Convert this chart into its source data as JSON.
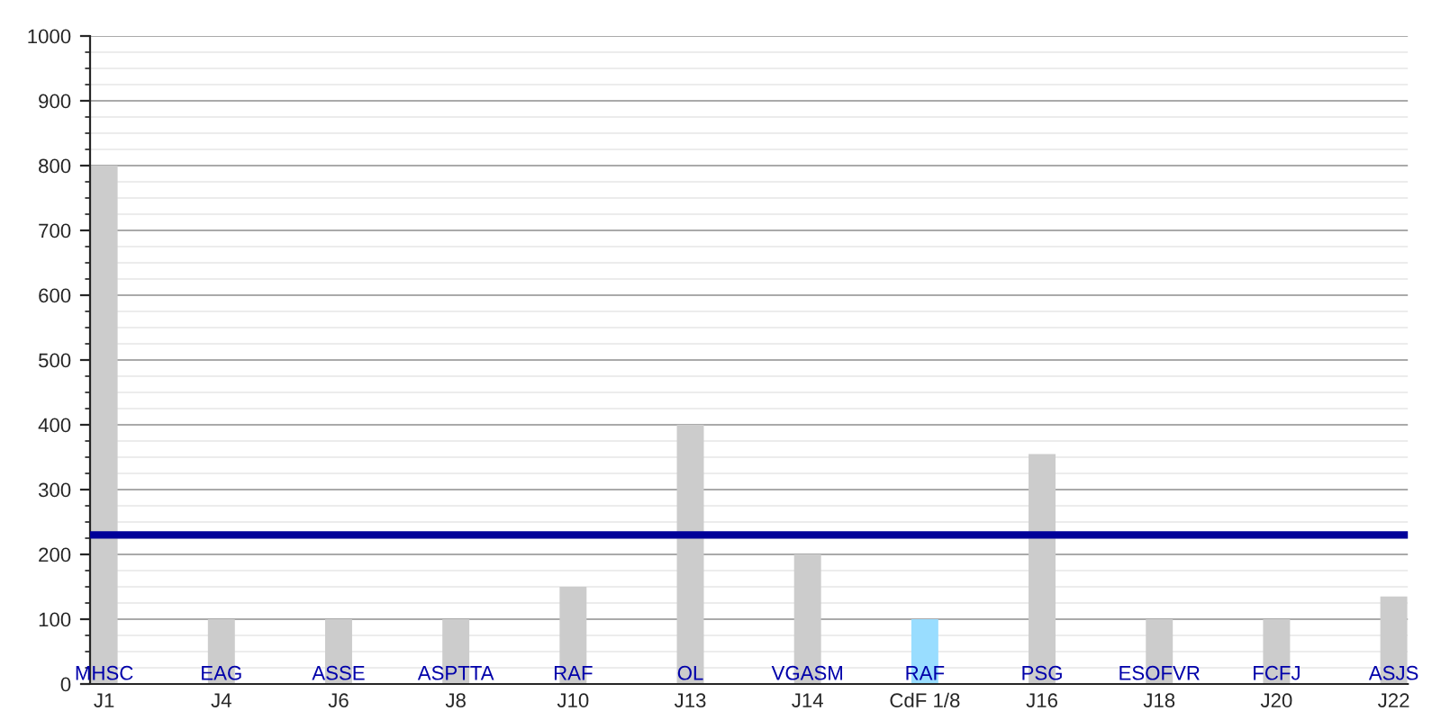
{
  "chart_data": {
    "type": "bar",
    "categories": [
      "J1",
      "J4",
      "J6",
      "J8",
      "J10",
      "J13",
      "J14",
      "CdF 1/8",
      "J16",
      "J18",
      "J20",
      "J22"
    ],
    "values": [
      800,
      100,
      100,
      100,
      150,
      400,
      200,
      100,
      355,
      100,
      100,
      135
    ],
    "colors": [
      "#cccccc",
      "#cccccc",
      "#cccccc",
      "#cccccc",
      "#cccccc",
      "#cccccc",
      "#cccccc",
      "#99ddff",
      "#cccccc",
      "#cccccc",
      "#cccccc",
      "#cccccc"
    ],
    "ylim": [
      0,
      1000
    ],
    "yticks": [
      0,
      100,
      200,
      300,
      400,
      500,
      600,
      700,
      800,
      900,
      1000
    ],
    "grid": "y",
    "ref_lines": [
      {
        "axis": "y",
        "value": 230,
        "color": "#000099"
      }
    ],
    "annotations": [
      {
        "text": "MHSC",
        "x": "J1",
        "y": 0
      },
      {
        "text": "EAG",
        "x": "J4",
        "y": 0
      },
      {
        "text": "ASSE",
        "x": "J6",
        "y": 0
      },
      {
        "text": "ASPTTA",
        "x": "J8",
        "y": 0
      },
      {
        "text": "RAF",
        "x": "J10",
        "y": 0
      },
      {
        "text": "OL",
        "x": "J13",
        "y": 0
      },
      {
        "text": "VGASM",
        "x": "J14",
        "y": 0
      },
      {
        "text": "RAF",
        "x": "CdF 1/8",
        "y": 0
      },
      {
        "text": "PSG",
        "x": "J16",
        "y": 0
      },
      {
        "text": "ESOFVR",
        "x": "J18",
        "y": 0
      },
      {
        "text": "FCFJ",
        "x": "J20",
        "y": 0
      },
      {
        "text": "ASJS",
        "x": "J22",
        "y": 0
      }
    ]
  }
}
